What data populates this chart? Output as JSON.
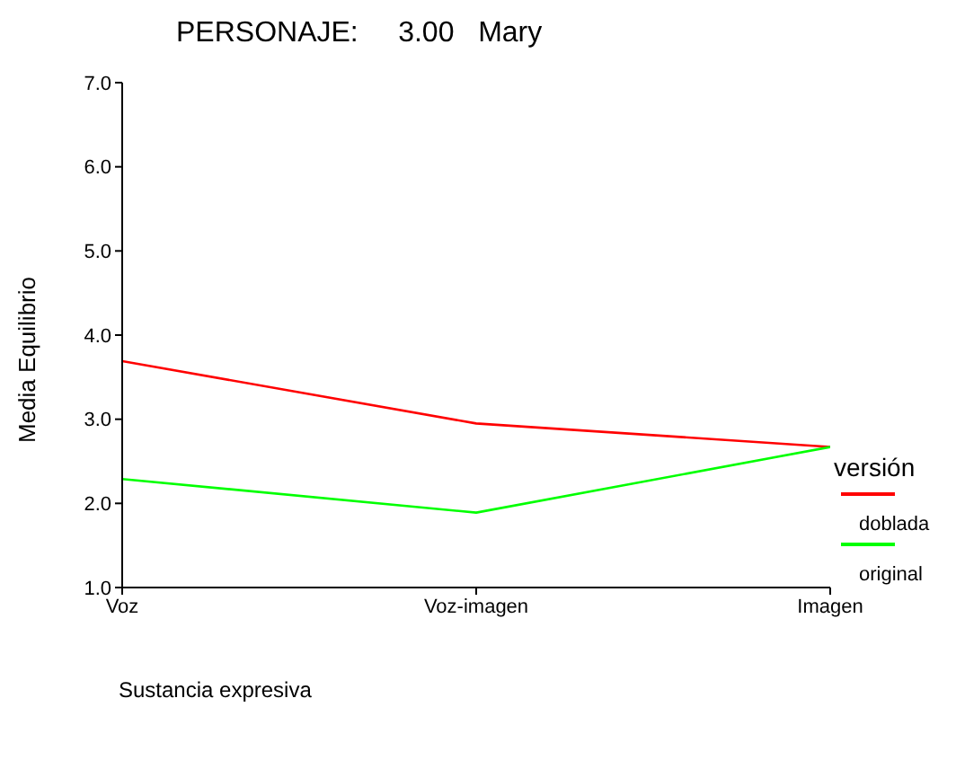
{
  "chart_data": {
    "type": "line",
    "title": "PERSONAJE:     3.00   Mary",
    "xlabel": "Sustancia expresiva",
    "ylabel": "Media Equilibrio",
    "legend_title": "versión",
    "categories": [
      "Voz",
      "Voz-imagen",
      "Imagen"
    ],
    "series": [
      {
        "name": "doblada",
        "color": "#ff0000",
        "values": [
          3.69,
          2.95,
          2.67
        ]
      },
      {
        "name": "original",
        "color": "#00ff00",
        "values": [
          2.29,
          1.89,
          2.67
        ]
      }
    ],
    "ylim": [
      1,
      7
    ],
    "yticks": [
      {
        "value": 1,
        "label": "1.0"
      },
      {
        "value": 2,
        "label": "2.0"
      },
      {
        "value": 3,
        "label": "3.0"
      },
      {
        "value": 4,
        "label": "4.0"
      },
      {
        "value": 5,
        "label": "5.0"
      },
      {
        "value": 6,
        "label": "6.0"
      },
      {
        "value": 7,
        "label": "7.0"
      }
    ],
    "grid": false,
    "legend": "right",
    "marker": "none",
    "line_style": "solid"
  }
}
